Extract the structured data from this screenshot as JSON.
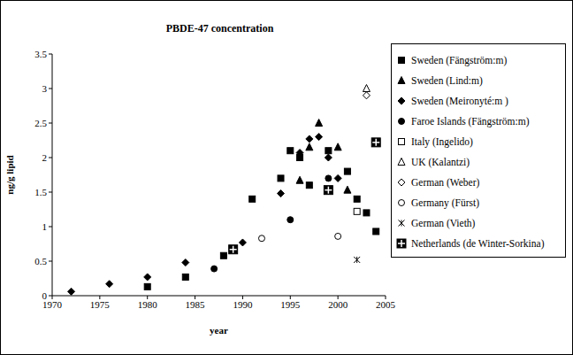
{
  "chart_data": {
    "type": "scatter",
    "title": "PBDE-47 concentration",
    "x_label": "year",
    "y_label": "ng/g lipid",
    "xlim": [
      1970,
      2005
    ],
    "xticks": [
      1970,
      1975,
      1980,
      1985,
      1990,
      1995,
      2000,
      2005
    ],
    "ylim": [
      0,
      3.5
    ],
    "yticks": [
      0,
      0.5,
      1,
      1.5,
      2,
      2.5,
      3,
      3.5
    ],
    "grid": false,
    "legend": "right",
    "series": [
      {
        "name": "Sweden (Fängström:m)",
        "color": "#000000",
        "marker": "square",
        "x": [
          1980,
          1984,
          1988,
          1991,
          1994,
          1995,
          1996,
          1997,
          1999,
          2001,
          2002,
          2003,
          2004
        ],
        "values": [
          0.13,
          0.27,
          0.58,
          1.4,
          1.7,
          2.1,
          2.0,
          1.6,
          2.1,
          1.8,
          1.4,
          1.2,
          0.93
        ]
      },
      {
        "name": "Sweden (Lind:m)",
        "color": "#000000",
        "marker": "triangle",
        "x": [
          1996,
          1997,
          1998,
          2000,
          2001
        ],
        "values": [
          1.67,
          2.15,
          2.5,
          2.15,
          1.53
        ]
      },
      {
        "name": "Sweden (Meironyté:m )",
        "color": "#000000",
        "marker": "diamond",
        "x": [
          1972,
          1976,
          1980,
          1984,
          1990,
          1994,
          1996,
          1997,
          1998,
          1999,
          2000
        ],
        "values": [
          0.06,
          0.17,
          0.27,
          0.48,
          0.77,
          1.48,
          2.07,
          2.27,
          2.3,
          2.0,
          1.7
        ]
      },
      {
        "name": "Faroe Islands (Fängström:m)",
        "color": "#000000",
        "marker": "circle",
        "x": [
          1987,
          1995,
          1999
        ],
        "values": [
          0.39,
          1.1,
          1.7
        ]
      },
      {
        "name": "Italy (Ingelido)",
        "color": "#000000",
        "marker": "square-open",
        "x": [
          2002
        ],
        "values": [
          1.22
        ]
      },
      {
        "name": "UK (Kalantzi)",
        "color": "#000000",
        "marker": "triangle-open",
        "x": [
          2003
        ],
        "values": [
          3.0
        ]
      },
      {
        "name": "German (Weber)",
        "color": "#000000",
        "marker": "diamond-open",
        "x": [
          2003
        ],
        "values": [
          2.9
        ]
      },
      {
        "name": "Germany (Fürst)",
        "color": "#000000",
        "marker": "circle-open",
        "x": [
          1992,
          2000
        ],
        "values": [
          0.83,
          0.86
        ]
      },
      {
        "name": "German (Vieth)",
        "color": "#000000",
        "marker": "asterisk",
        "x": [
          2002
        ],
        "values": [
          0.52
        ]
      },
      {
        "name": "Netherlands (de Winter-Sorkina)",
        "color": "#000000",
        "marker": "square-cross",
        "x": [
          1989,
          1999,
          2004
        ],
        "values": [
          0.67,
          1.53,
          2.22
        ]
      }
    ]
  }
}
